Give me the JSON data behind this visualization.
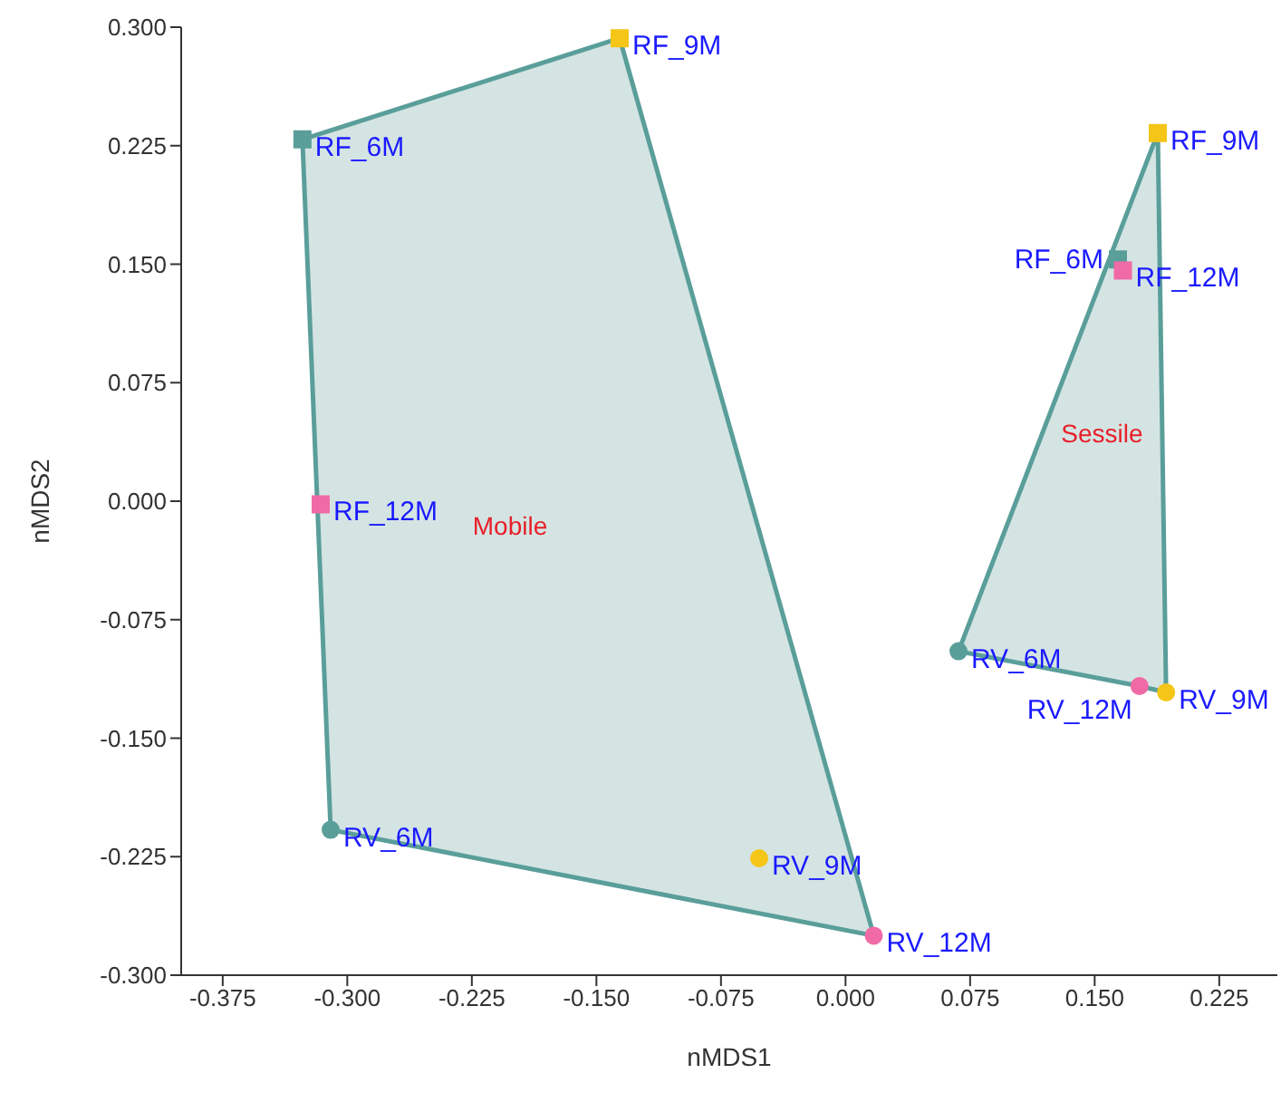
{
  "chart_data": {
    "type": "scatter",
    "xlabel": "nMDS1",
    "ylabel": "nMDS2",
    "xlim": [
      -0.4,
      0.26
    ],
    "ylim": [
      -0.3,
      0.3
    ],
    "xticks": [
      {
        "value": -0.375,
        "label": "-0.375"
      },
      {
        "value": -0.3,
        "label": "-0.300"
      },
      {
        "value": -0.225,
        "label": "-0.225"
      },
      {
        "value": -0.15,
        "label": "-0.150"
      },
      {
        "value": -0.075,
        "label": "-0.075"
      },
      {
        "value": 0,
        "label": "0.000"
      },
      {
        "value": 0.075,
        "label": "0.075"
      },
      {
        "value": 0.15,
        "label": "0.150"
      },
      {
        "value": 0.225,
        "label": "0.225"
      }
    ],
    "yticks": [
      {
        "value": -0.3,
        "label": "-0.300"
      },
      {
        "value": -0.225,
        "label": "-0.225"
      },
      {
        "value": -0.15,
        "label": "-0.150"
      },
      {
        "value": -0.075,
        "label": "-0.075"
      },
      {
        "value": 0,
        "label": "0.000"
      },
      {
        "value": 0.075,
        "label": "0.075"
      },
      {
        "value": 0.15,
        "label": "0.150"
      },
      {
        "value": 0.225,
        "label": "0.225"
      },
      {
        "value": 0.3,
        "label": "0.300"
      }
    ],
    "series": [
      {
        "type": "area",
        "color": "#5a9e9a",
        "x": [
          -0.327,
          -0.136,
          0.017,
          -0.31
        ],
        "values": [
          0.229,
          0.293,
          -0.275,
          -0.208
        ]
      },
      {
        "type": "area",
        "color": "#5a9e9a",
        "x": [
          0.188,
          0.193,
          0.177,
          0.068
        ],
        "values": [
          0.233,
          -0.121,
          -0.117,
          -0.095
        ]
      },
      {
        "color": "#5a9e9a",
        "marker": "square",
        "x": [
          -0.327,
          0.164
        ],
        "values": [
          0.229,
          0.153
        ]
      },
      {
        "color": "#f5c518",
        "marker": "square",
        "x": [
          -0.136,
          0.188
        ],
        "values": [
          0.293,
          0.233
        ]
      },
      {
        "color": "#f06aa6",
        "marker": "square",
        "x": [
          -0.316,
          0.167
        ],
        "values": [
          -0.002,
          0.146
        ]
      },
      {
        "color": "#5a9e9a",
        "marker": "circle",
        "x": [
          -0.31,
          0.068
        ],
        "values": [
          -0.208,
          -0.095
        ]
      },
      {
        "color": "#f5c518",
        "marker": "circle",
        "x": [
          -0.052,
          0.193
        ],
        "values": [
          -0.226,
          -0.121
        ]
      },
      {
        "color": "#f06aa6",
        "marker": "circle",
        "x": [
          0.017,
          0.177
        ],
        "values": [
          -0.275,
          -0.117
        ]
      }
    ],
    "annotations": [
      {
        "text": "RF_6M",
        "x": -0.327,
        "y": 0.229
      },
      {
        "text": "RF_6M",
        "x": 0.164,
        "y": 0.153
      },
      {
        "text": "RF_9M",
        "x": -0.136,
        "y": 0.293
      },
      {
        "text": "RF_9M",
        "x": 0.188,
        "y": 0.233
      },
      {
        "text": "RF_12M",
        "x": -0.316,
        "y": -0.002
      },
      {
        "text": "RF_12M",
        "x": 0.167,
        "y": 0.146
      },
      {
        "text": "RV_6M",
        "x": -0.31,
        "y": -0.208
      },
      {
        "text": "RV_6M",
        "x": 0.068,
        "y": -0.095
      },
      {
        "text": "RV_9M",
        "x": -0.052,
        "y": -0.226
      },
      {
        "text": "RV_9M",
        "x": 0.193,
        "y": -0.121
      },
      {
        "text": "RV_12M",
        "x": 0.017,
        "y": -0.275
      },
      {
        "text": "RV_12M",
        "x": 0.177,
        "y": -0.117
      },
      "Mobile",
      "Sessile"
    ]
  }
}
